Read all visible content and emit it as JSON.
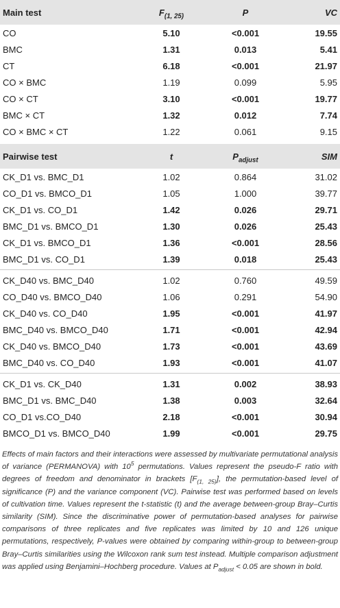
{
  "table": {
    "main_header": [
      "Main test",
      {
        "text": "F",
        "sub": "(1, 25)"
      },
      "P",
      "VC"
    ],
    "main_rows": [
      {
        "cells": [
          "CO",
          "5.10",
          "<0.001",
          "19.55"
        ],
        "bold": true
      },
      {
        "cells": [
          "BMC",
          "1.31",
          "0.013",
          "5.41"
        ],
        "bold": true
      },
      {
        "cells": [
          "CT",
          "6.18",
          "<0.001",
          "21.97"
        ],
        "bold": true
      },
      {
        "cells": [
          "CO × BMC",
          "1.19",
          "0.099",
          "5.95"
        ],
        "bold": false
      },
      {
        "cells": [
          "CO × CT",
          "3.10",
          "<0.001",
          "19.77"
        ],
        "bold": true
      },
      {
        "cells": [
          "BMC × CT",
          "1.32",
          "0.012",
          "7.74"
        ],
        "bold": true
      },
      {
        "cells": [
          "CO × BMC × CT",
          "1.22",
          "0.061",
          "9.15"
        ],
        "bold": false
      }
    ],
    "pairwise_header": [
      "Pairwise test",
      "t",
      {
        "text": "P",
        "sub": "adjust"
      },
      "SIM"
    ],
    "pairwise_groups": [
      [
        {
          "cells": [
            "CK_D1 vs. BMC_D1",
            "1.02",
            "0.864",
            "31.02"
          ],
          "bold": false
        },
        {
          "cells": [
            "CO_D1 vs. BMCO_D1",
            "1.05",
            "1.000",
            "39.77"
          ],
          "bold": false
        },
        {
          "cells": [
            "CK_D1 vs. CO_D1",
            "1.42",
            "0.026",
            "29.71"
          ],
          "bold": true
        },
        {
          "cells": [
            "BMC_D1 vs. BMCO_D1",
            "1.30",
            "0.026",
            "25.43"
          ],
          "bold": true
        },
        {
          "cells": [
            "CK_D1 vs. BMCO_D1",
            "1.36",
            "<0.001",
            "28.56"
          ],
          "bold": true
        },
        {
          "cells": [
            "BMC_D1 vs. CO_D1",
            "1.39",
            "0.018",
            "25.43"
          ],
          "bold": true
        }
      ],
      [
        {
          "cells": [
            "CK_D40 vs. BMC_D40",
            "1.02",
            "0.760",
            "49.59"
          ],
          "bold": false
        },
        {
          "cells": [
            "CO_D40 vs. BMCO_D40",
            "1.06",
            "0.291",
            "54.90"
          ],
          "bold": false
        },
        {
          "cells": [
            "CK_D40 vs. CO_D40",
            "1.95",
            "<0.001",
            "41.97"
          ],
          "bold": true
        },
        {
          "cells": [
            "BMC_D40 vs. BMCO_D40",
            "1.71",
            "<0.001",
            "42.94"
          ],
          "bold": true
        },
        {
          "cells": [
            "CK_D40 vs. BMCO_D40",
            "1.73",
            "<0.001",
            "43.69"
          ],
          "bold": true
        },
        {
          "cells": [
            "BMC_D40 vs. CO_D40",
            "1.93",
            "<0.001",
            "41.07"
          ],
          "bold": true
        }
      ],
      [
        {
          "cells": [
            "CK_D1 vs. CK_D40",
            "1.31",
            "0.002",
            "38.93"
          ],
          "bold": true
        },
        {
          "cells": [
            "BMC_D1 vs. BMC_D40",
            "1.38",
            "0.003",
            "32.64"
          ],
          "bold": true
        },
        {
          "cells": [
            "CO_D1 vs.CO_D40",
            "2.18",
            "<0.001",
            "30.94"
          ],
          "bold": true
        },
        {
          "cells": [
            "BMCO_D1 vs. BMCO_D40",
            "1.99",
            "<0.001",
            "29.75"
          ],
          "bold": true
        }
      ]
    ]
  },
  "footnote": [
    "Effects of main factors and their interactions were assessed by multivariate permutational analysis of variance (PERMANOVA) with 10",
    {
      "sup": "5"
    },
    " permutations. Values represent the pseudo-F ratio with degrees of freedom and denominator in brackets [F",
    {
      "sub": "(1, 25)"
    },
    "], the permutation-based level of significance (P) and the variance component (VC). Pairwise test was performed based on levels of cultivation time. Values represent the t-statistic (t) and the average between-group Bray–Curtis similarity (SIM). Since the discriminative power of permutation-based analyses for pairwise comparisons of three replicates and five replicates was limited by 10 and 126 unique permutations, respectively, P-values were obtained by comparing within-group to between-group Bray–Curtis similarities using the Wilcoxon rank sum test instead. Multiple comparison adjustment was applied using Benjamini–Hochberg procedure. Values at P",
    {
      "sub": "adjust"
    },
    " < 0.05 are shown in bold."
  ]
}
